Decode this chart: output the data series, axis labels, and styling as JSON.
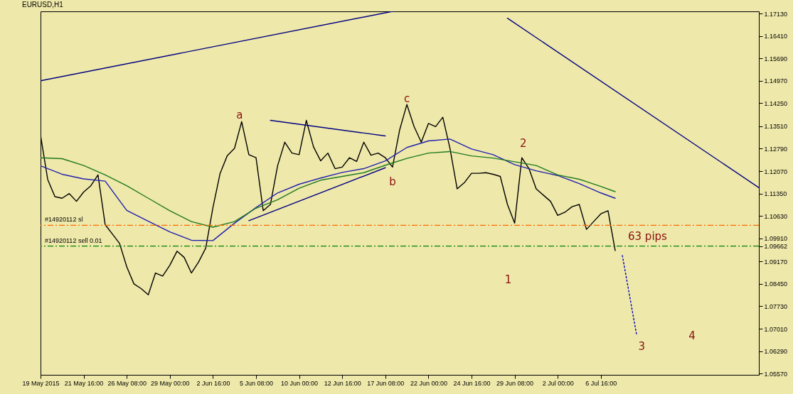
{
  "chart_data": {
    "type": "line",
    "title": "EURUSD,H1",
    "categories": [
      "19 May 2015",
      null,
      null,
      null,
      null,
      null,
      "21 May 16:00",
      null,
      null,
      null,
      null,
      null,
      "26 May 08:00",
      null,
      null,
      null,
      null,
      null,
      "29 May 00:00",
      null,
      null,
      null,
      null,
      null,
      "2 Jun 16:00",
      null,
      null,
      null,
      null,
      null,
      "5 Jun 08:00",
      null,
      null,
      null,
      null,
      null,
      "10 Jun 00:00",
      null,
      null,
      null,
      null,
      null,
      "12 Jun 16:00",
      null,
      null,
      null,
      null,
      null,
      "17 Jun 08:00",
      null,
      null,
      null,
      null,
      null,
      "22 Jun 00:00",
      null,
      null,
      null,
      null,
      null,
      "24 Jun 16:00",
      null,
      null,
      null,
      null,
      null,
      "29 Jun 08:00",
      null,
      null,
      null,
      null,
      null,
      "2 Jul 00:00",
      null,
      null,
      null,
      null,
      null,
      "6 Jul 16:00",
      null,
      null,
      null,
      null,
      null,
      null,
      null,
      null,
      null,
      null,
      null,
      null,
      null,
      null,
      null,
      null,
      null,
      null,
      null,
      null,
      null,
      null
    ],
    "ylim": [
      1.0553,
      1.172
    ],
    "yticks": [
      {
        "value": 1.1713,
        "label": "1.17130"
      },
      {
        "value": 1.1641,
        "label": "1.16410"
      },
      {
        "value": 1.1569,
        "label": "1.15690"
      },
      {
        "value": 1.1497,
        "label": "1.14970"
      },
      {
        "value": 1.1425,
        "label": "1.14250"
      },
      {
        "value": 1.1351,
        "label": "1.13510"
      },
      {
        "value": 1.1279,
        "label": "1.12790"
      },
      {
        "value": 1.1207,
        "label": "1.12070"
      },
      {
        "value": 1.1135,
        "label": "1.11350"
      },
      {
        "value": 1.1063,
        "label": "1.10630"
      },
      {
        "value": 1.0991,
        "label": "1.09910"
      },
      1.09662,
      {
        "value": 1.0917,
        "label": "1.09170"
      },
      {
        "value": 1.0845,
        "label": "1.08450"
      },
      {
        "value": 1.0773,
        "label": "1.07730"
      },
      {
        "value": 1.0701,
        "label": "1.07010"
      },
      {
        "value": 1.0629,
        "label": "1.06290"
      },
      {
        "value": 1.0557,
        "label": "1.05570"
      }
    ],
    "marker": "none",
    "grid": false,
    "series": [
      {
        "color": "#000000",
        "values": [
          1.1322,
          1.118,
          1.1125,
          1.112,
          1.1135,
          1.111,
          1.114,
          1.116,
          1.1195,
          1.1035,
          1.1005,
          1.0975,
          1.09,
          1.0845,
          1.083,
          1.081,
          1.088,
          1.087,
          1.0905,
          1.095,
          1.093,
          1.088,
          1.0915,
          1.096,
          1.109,
          1.12,
          1.1257,
          1.128,
          1.1366,
          1.126,
          1.125,
          1.108,
          1.11,
          1.1224,
          1.13,
          1.1265,
          1.126,
          1.137,
          1.1285,
          1.124,
          1.1265,
          1.1215,
          1.122,
          1.125,
          1.1238,
          1.13,
          1.1258,
          1.1265,
          1.125,
          1.122,
          1.134,
          1.1421,
          1.135,
          1.13,
          1.136,
          1.135,
          1.138,
          1.128,
          1.115,
          1.117,
          1.12,
          1.12,
          1.1202,
          1.1197,
          1.119,
          1.11,
          1.104,
          1.125,
          1.1215,
          1.115,
          1.113,
          1.111,
          1.1065,
          1.1075,
          1.1093,
          1.11,
          1.102,
          1.1045,
          1.107,
          1.108,
          1.0952,
          null,
          null,
          null,
          null,
          null,
          null,
          null,
          null,
          null,
          null,
          null,
          null,
          null,
          null,
          null,
          null,
          null,
          null,
          null,
          null
        ]
      },
      {
        "color": "#2020b0",
        "values": [
          1.1224,
          null,
          null,
          1.1197,
          null,
          null,
          1.1182,
          null,
          null,
          1.1175,
          null,
          null,
          1.1081,
          null,
          null,
          1.1046,
          null,
          null,
          1.1012,
          null,
          null,
          1.0985,
          null,
          null,
          1.0984,
          null,
          null,
          1.104,
          null,
          null,
          1.109,
          null,
          null,
          1.1137,
          null,
          null,
          1.1165,
          null,
          null,
          1.1185,
          null,
          null,
          1.1203,
          null,
          null,
          1.1215,
          null,
          null,
          1.124,
          null,
          null,
          1.1283,
          null,
          null,
          1.1304,
          null,
          null,
          1.131,
          null,
          null,
          1.1278,
          null,
          null,
          1.126,
          null,
          null,
          1.1228,
          null,
          null,
          1.1208,
          null,
          null,
          1.1193,
          null,
          null,
          1.1167,
          null,
          null,
          1.1137,
          null,
          1.112,
          null,
          null,
          null,
          null,
          null,
          null,
          null,
          null,
          null,
          null,
          null,
          null,
          null,
          null,
          null,
          null,
          null,
          null,
          null,
          null
        ]
      },
      {
        "color": "#1e7a1e",
        "values": [
          1.125,
          null,
          null,
          1.1247,
          null,
          null,
          1.1225,
          null,
          null,
          1.1195,
          null,
          null,
          1.116,
          null,
          null,
          1.112,
          null,
          null,
          1.108,
          null,
          null,
          1.1045,
          null,
          null,
          1.1027,
          null,
          null,
          1.1045,
          null,
          null,
          1.1088,
          null,
          null,
          1.1115,
          null,
          null,
          1.1152,
          null,
          null,
          1.1178,
          null,
          null,
          1.119,
          null,
          null,
          1.1202,
          null,
          null,
          1.1226,
          null,
          null,
          1.1248,
          null,
          null,
          1.1265,
          null,
          null,
          1.127,
          null,
          null,
          1.1256,
          null,
          null,
          1.1249,
          null,
          null,
          1.1237,
          null,
          null,
          1.1225,
          null,
          null,
          1.1195,
          null,
          null,
          1.1181,
          null,
          null,
          1.1158,
          null,
          1.1141,
          null,
          null,
          null,
          null,
          null,
          null,
          null,
          null,
          null,
          null,
          null,
          null,
          null,
          null,
          null,
          null,
          null,
          null,
          null,
          null
        ]
      },
      {
        "color": "#000080",
        "values": [
          1.1497,
          null,
          null,
          null,
          null,
          null,
          null,
          null,
          null,
          null,
          null,
          null,
          null,
          null,
          null,
          null,
          null,
          null,
          null,
          null,
          null,
          null,
          null,
          null,
          null,
          null,
          null,
          null,
          null,
          null,
          null,
          null,
          null,
          null,
          null,
          null,
          null,
          null,
          null,
          null,
          null,
          null,
          null,
          null,
          null,
          null,
          null,
          null,
          null,
          1.172,
          null,
          null,
          null,
          null,
          null,
          null,
          null,
          null,
          null,
          null,
          null,
          null,
          null,
          null,
          null,
          null,
          null,
          null,
          null,
          null,
          null,
          null,
          null,
          null,
          null,
          null,
          null,
          null,
          null,
          null,
          null,
          null,
          null,
          null,
          null,
          null,
          null,
          null,
          null,
          null,
          null,
          null,
          null,
          null,
          null,
          null,
          null,
          null,
          null,
          null,
          null
        ]
      },
      {
        "color": "#000080",
        "values": [
          null,
          null,
          null,
          null,
          null,
          null,
          null,
          null,
          null,
          null,
          null,
          null,
          null,
          null,
          null,
          null,
          null,
          null,
          null,
          null,
          null,
          null,
          null,
          null,
          null,
          null,
          null,
          null,
          null,
          null,
          null,
          null,
          null,
          null,
          null,
          null,
          null,
          null,
          null,
          null,
          null,
          null,
          null,
          null,
          null,
          null,
          null,
          null,
          null,
          null,
          null,
          null,
          null,
          null,
          null,
          null,
          null,
          null,
          null,
          null,
          null,
          null,
          null,
          null,
          null,
          1.1698,
          null,
          null,
          null,
          null,
          null,
          null,
          null,
          null,
          null,
          null,
          null,
          null,
          null,
          null,
          null,
          null,
          null,
          null,
          null,
          null,
          null,
          null,
          null,
          null,
          null,
          null,
          null,
          null,
          null,
          null,
          null,
          null,
          null,
          null,
          1.1154
        ]
      },
      {
        "color": "#000080",
        "values": [
          null,
          null,
          null,
          null,
          null,
          null,
          null,
          null,
          null,
          null,
          null,
          null,
          null,
          null,
          null,
          null,
          null,
          null,
          null,
          null,
          null,
          null,
          null,
          null,
          null,
          null,
          null,
          null,
          null,
          null,
          null,
          null,
          1.137,
          null,
          null,
          null,
          null,
          null,
          null,
          null,
          null,
          null,
          null,
          null,
          null,
          null,
          null,
          null,
          1.132,
          null,
          null,
          null,
          null,
          null,
          null,
          null,
          null,
          null,
          null,
          null,
          null,
          null,
          null,
          null,
          null,
          null,
          null,
          null,
          null,
          null,
          null,
          null,
          null,
          null,
          null,
          null,
          null,
          null,
          null,
          null,
          null,
          null,
          null,
          null,
          null,
          null,
          null,
          null,
          null,
          null,
          null,
          null,
          null,
          null,
          null,
          null,
          null,
          null,
          null,
          null,
          null
        ]
      },
      {
        "color": "#000080",
        "values": [
          null,
          null,
          null,
          null,
          null,
          null,
          null,
          null,
          null,
          null,
          null,
          null,
          null,
          null,
          null,
          null,
          null,
          null,
          null,
          null,
          null,
          null,
          null,
          null,
          null,
          null,
          null,
          null,
          null,
          1.1048,
          null,
          null,
          null,
          null,
          null,
          null,
          null,
          null,
          null,
          null,
          null,
          null,
          null,
          null,
          null,
          null,
          null,
          null,
          1.1218,
          null,
          null,
          null,
          null,
          null,
          null,
          null,
          null,
          null,
          null,
          null,
          null,
          null,
          null,
          null,
          null,
          null,
          null,
          null,
          null,
          null,
          null,
          null,
          null,
          null,
          null,
          null,
          null,
          null,
          null,
          null,
          null,
          null,
          null,
          null,
          null,
          null,
          null,
          null,
          null,
          null,
          null,
          null,
          null,
          null,
          null,
          null,
          null,
          null,
          null,
          null,
          null
        ]
      },
      {
        "color": "#0000c0",
        "line_style": "dotted",
        "values": [
          null,
          null,
          null,
          null,
          null,
          null,
          null,
          null,
          null,
          null,
          null,
          null,
          null,
          null,
          null,
          null,
          null,
          null,
          null,
          null,
          null,
          null,
          null,
          null,
          null,
          null,
          null,
          null,
          null,
          null,
          null,
          null,
          null,
          null,
          null,
          null,
          null,
          null,
          null,
          null,
          null,
          null,
          null,
          null,
          null,
          null,
          null,
          null,
          null,
          null,
          null,
          null,
          null,
          null,
          null,
          null,
          null,
          null,
          null,
          null,
          null,
          null,
          null,
          null,
          null,
          null,
          null,
          null,
          null,
          null,
          null,
          null,
          null,
          null,
          null,
          null,
          null,
          null,
          null,
          null,
          null,
          1.0936,
          null,
          1.0679,
          null,
          null,
          null,
          null,
          null,
          null,
          null,
          null,
          null,
          null,
          null,
          null,
          null,
          null,
          null,
          null,
          null
        ]
      }
    ],
    "ref_lines": [
      {
        "axis": "y",
        "value": 1.1033,
        "label": "#14920112 sl",
        "color": "#ff6a00",
        "line_style": "dashed"
      },
      {
        "axis": "y",
        "value": 1.09662,
        "label": "#14920112 sell 0.01",
        "color": "#008000",
        "line_style": "dashed"
      }
    ],
    "annotations": [
      "a",
      "c",
      "b",
      "2",
      "1",
      "3",
      "4",
      "63 pips"
    ]
  }
}
